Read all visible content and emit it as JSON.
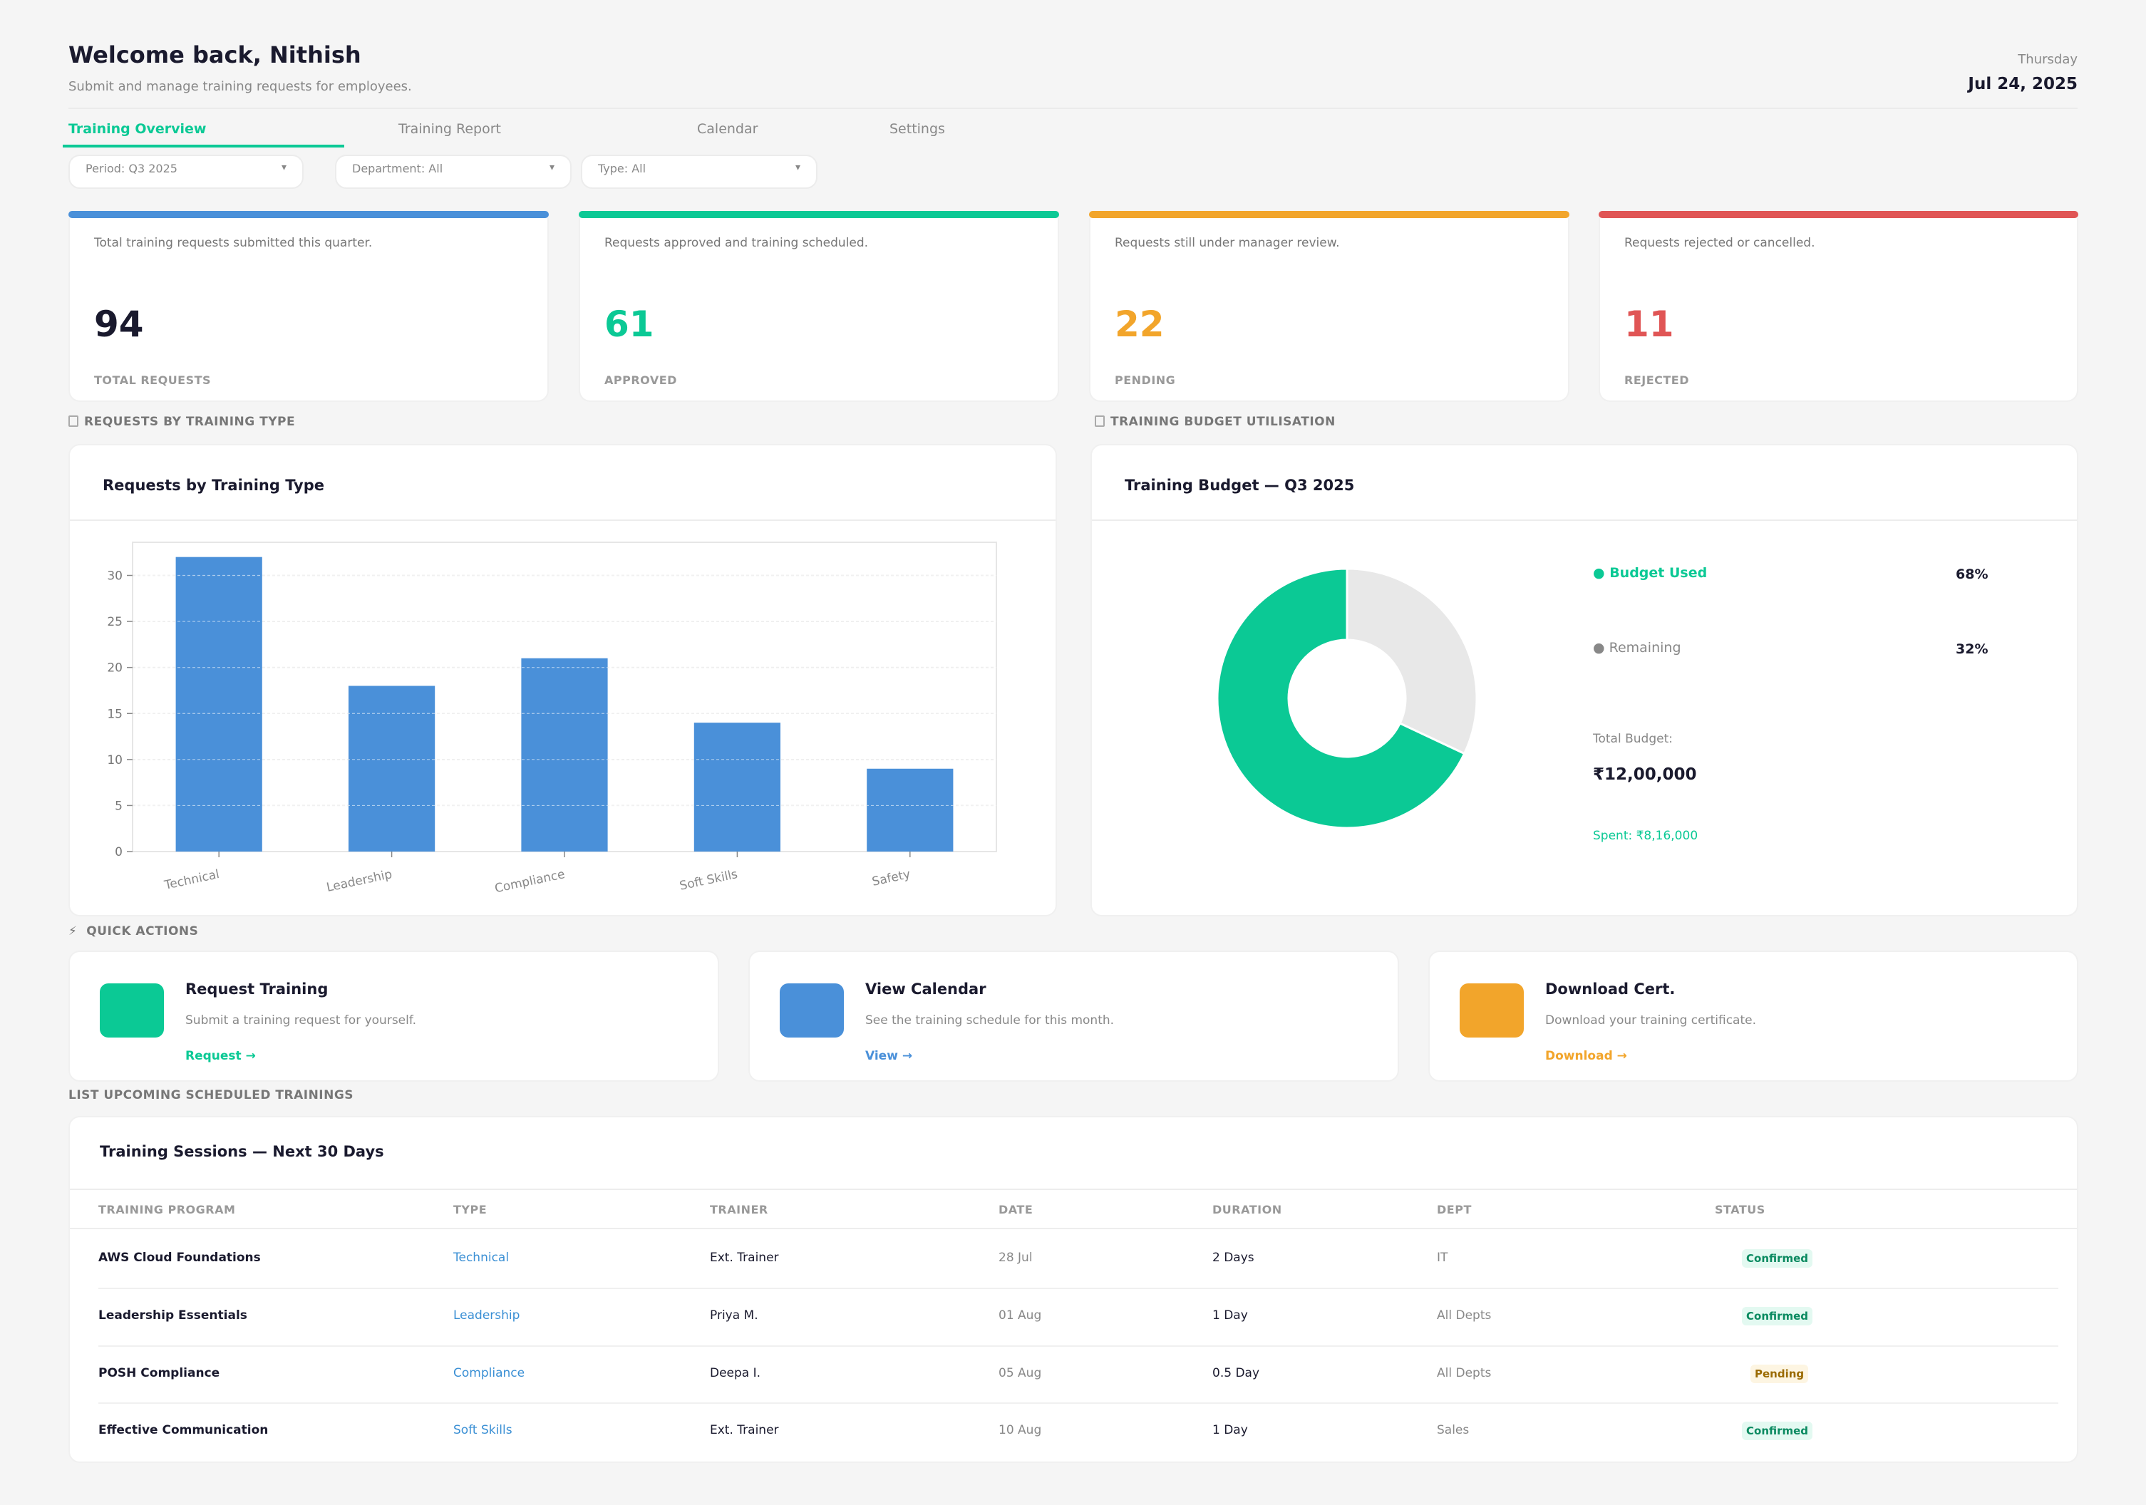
{
  "header": {
    "welcome": "Welcome back, Nithish",
    "subtitle": "Submit and manage training requests for employees.",
    "day": "Thursday",
    "date": "Jul 24, 2025"
  },
  "tabs": [
    {
      "label": "Training Overview",
      "active": true
    },
    {
      "label": "Training Report",
      "active": false
    },
    {
      "label": "Calendar",
      "active": false
    },
    {
      "label": "Settings",
      "active": false
    }
  ],
  "filters": {
    "period": "Period: Q3 2025",
    "department": "Department: All",
    "type": "Type: All",
    "caret": "▾"
  },
  "kpis": [
    {
      "desc": "Total training requests submitted this quarter.",
      "value": "94",
      "label": "TOTAL REQUESTS",
      "color": "#4a90d9",
      "value_color": "#1a1a2e"
    },
    {
      "desc": "Requests approved and training scheduled.",
      "value": "61",
      "label": "APPROVED",
      "color": "#0bc995",
      "value_color": "#0bc995"
    },
    {
      "desc": "Requests still under manager review.",
      "value": "22",
      "label": "PENDING",
      "color": "#f2a52b",
      "value_color": "#f2a52b"
    },
    {
      "desc": "Requests rejected or cancelled.",
      "value": "11",
      "label": "REJECTED",
      "color": "#e05555",
      "value_color": "#e05555"
    }
  ],
  "sections": {
    "requests_by_type": "REQUESTS BY TRAINING TYPE",
    "budget": "TRAINING BUDGET UTILISATION",
    "quick_actions": "QUICK ACTIONS",
    "upcoming": "LIST  UPCOMING SCHEDULED TRAININGS"
  },
  "bar_panel": {
    "title": "Requests by Training Type"
  },
  "chart_data": [
    {
      "type": "bar",
      "categories": [
        "Technical",
        "Leadership",
        "Compliance",
        "Soft Skills",
        "Safety"
      ],
      "values": [
        32,
        18,
        21,
        14,
        9
      ],
      "ylim": [
        0,
        33.6
      ],
      "yticks": [
        0,
        5,
        10,
        15,
        20,
        25,
        30
      ],
      "grid": true,
      "color": "#4a90d9"
    },
    {
      "type": "pie",
      "donut": true,
      "labels": [
        "Budget Used",
        "Remaining"
      ],
      "values": [
        68,
        32
      ],
      "colors": [
        "#0bc995",
        "#e8e8e8"
      ]
    }
  ],
  "budget_panel": {
    "title": "Training Budget — Q3 2025",
    "used_label": "● Budget Used",
    "used_value": "68%",
    "remaining_label": "● Remaining",
    "remaining_value": "32%",
    "total_label": "Total Budget:",
    "total_value": "₹12,00,000",
    "spent": "Spent: ₹8,16,000"
  },
  "quick_actions": [
    {
      "title": "Request Training",
      "desc": "Submit a training request for yourself.",
      "link": "Request →",
      "color": "#0bc995"
    },
    {
      "title": "View Calendar",
      "desc": "See the training schedule for this month.",
      "link": "View →",
      "color": "#4a90d9"
    },
    {
      "title": "Download Cert.",
      "desc": "Download your training certificate.",
      "link": "Download →",
      "color": "#f2a52b"
    }
  ],
  "quick_actions_icon": "⚡",
  "table": {
    "title": "Training Sessions — Next 30 Days",
    "headers": [
      "TRAINING PROGRAM",
      "TYPE",
      "TRAINER",
      "DATE",
      "DURATION",
      "DEPT",
      "STATUS"
    ],
    "rows": [
      {
        "program": "AWS Cloud Foundations",
        "type": "Technical",
        "trainer": "Ext. Trainer",
        "date": "28 Jul",
        "duration": "2 Days",
        "dept": "IT",
        "status": "Confirmed"
      },
      {
        "program": "Leadership Essentials",
        "type": "Leadership",
        "trainer": "Priya M.",
        "date": "01 Aug",
        "duration": "1 Day",
        "dept": "All Depts",
        "status": "Confirmed"
      },
      {
        "program": "POSH Compliance",
        "type": "Compliance",
        "trainer": "Deepa I.",
        "date": "05 Aug",
        "duration": "0.5 Day",
        "dept": "All Depts",
        "status": "Pending"
      },
      {
        "program": "Effective Communication",
        "type": "Soft Skills",
        "trainer": "Ext. Trainer",
        "date": "10 Aug",
        "duration": "1 Day",
        "dept": "Sales",
        "status": "Confirmed"
      }
    ]
  }
}
